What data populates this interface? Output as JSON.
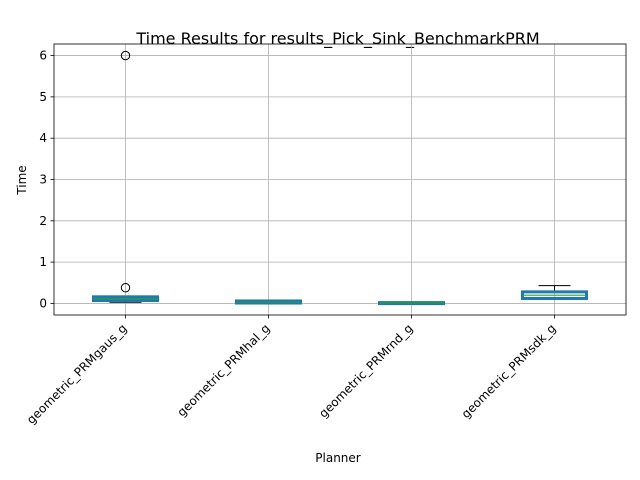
{
  "chart_data": {
    "type": "box",
    "title": "Time Results for results_Pick_Sink_BenchmarkPRM",
    "xlabel": "Planner",
    "ylabel": "Time",
    "ylim": [
      -0.28,
      6.28
    ],
    "yticks": [
      0,
      1,
      2,
      3,
      4,
      5,
      6
    ],
    "grid": true,
    "categories": [
      "geometric_PRMgaus_g",
      "geometric_PRMhal_g",
      "geometric_PRMrnd_g",
      "geometric_PRMsdk_g"
    ],
    "boxes": [
      {
        "q1": 0.07,
        "median": 0.12,
        "q3": 0.16,
        "whisker_low": 0.03,
        "whisker_high": 0.16,
        "outliers": [
          0.38,
          6.0
        ]
      },
      {
        "q1": 0.01,
        "median": 0.03,
        "q3": 0.06,
        "whisker_low": 0.0,
        "whisker_high": 0.06,
        "outliers": []
      },
      {
        "q1": 0.0,
        "median": 0.01,
        "q3": 0.02,
        "whisker_low": 0.0,
        "whisker_high": 0.02,
        "outliers": []
      },
      {
        "q1": 0.12,
        "median": 0.2,
        "q3": 0.28,
        "whisker_low": 0.1,
        "whisker_high": 0.43,
        "outliers": []
      }
    ],
    "box_color": "#1f77b4",
    "median_color": "#2ca02c"
  }
}
